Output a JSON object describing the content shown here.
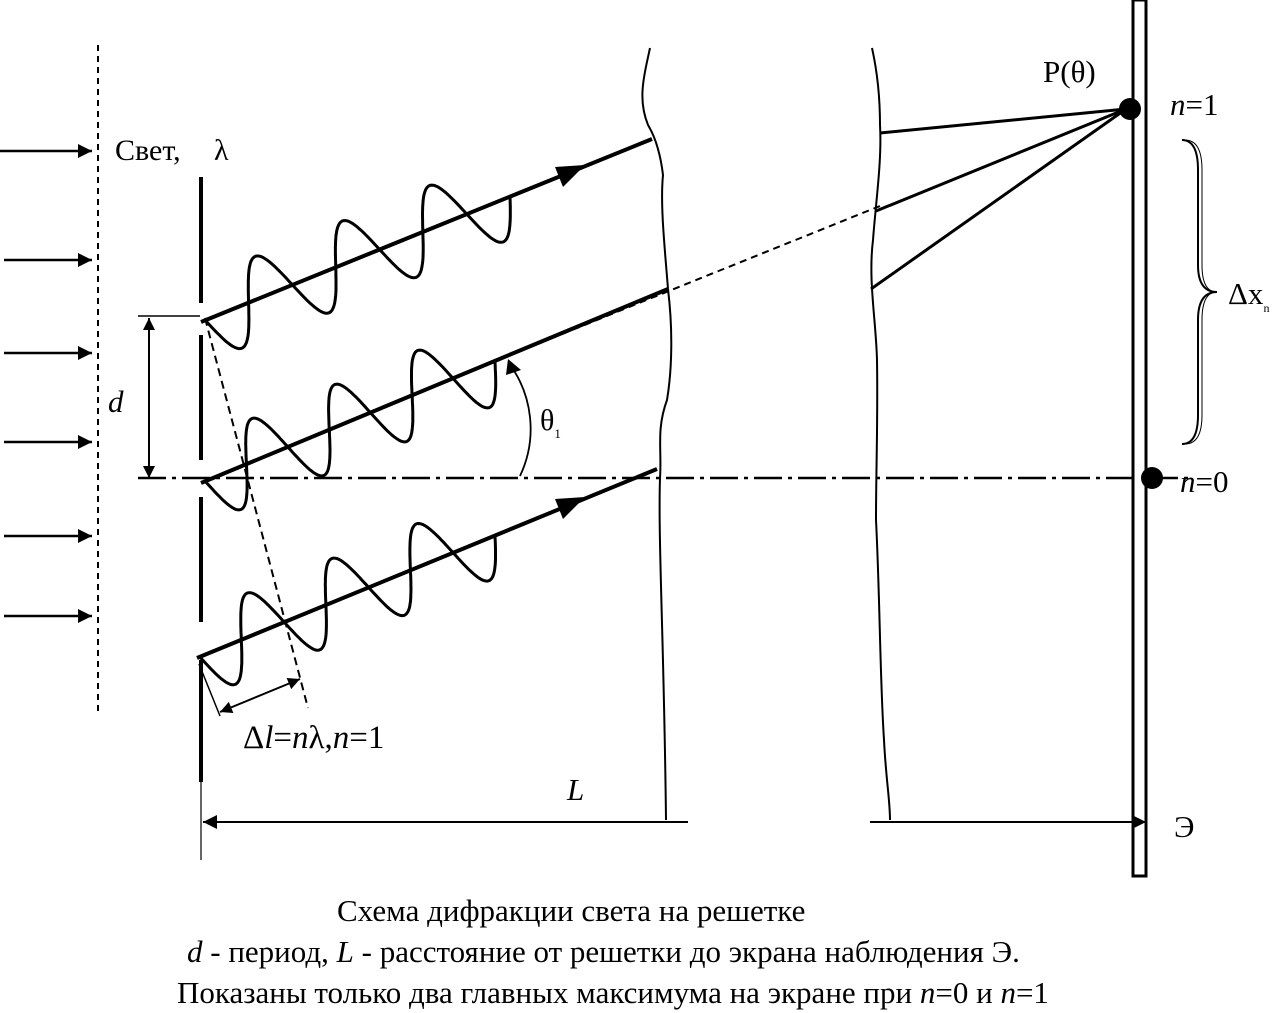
{
  "labels": {
    "light": "Свет,",
    "lambda": "λ",
    "point": "P(θ)",
    "n1_var": "n",
    "n1_rest": "=1",
    "n0_var": "n",
    "n0_rest": "=0",
    "delta_x": "Δx",
    "delta_x_sub": "n",
    "d": "d",
    "theta": "θ",
    "theta_sub": "1",
    "path_delta": "Δ",
    "path_l": "l",
    "path_eq": "=",
    "path_n": "n",
    "path_lambda": "λ,",
    "path_n2": "n",
    "path_one": "=1",
    "L": "L",
    "screen": "Э"
  },
  "caption": {
    "line1": "Схема дифракции света на решетке",
    "line2_d": "d",
    "line2_a": " - период, ",
    "line2_L": "L",
    "line2_b": " - расстояние от решетки до экрана наблюдения Э.",
    "line3_a": "Показаны только два главных максимума на экране при ",
    "line3_n1": "n",
    "line3_b": "=0 и ",
    "line3_n2": "n",
    "line3_c": "=1"
  }
}
